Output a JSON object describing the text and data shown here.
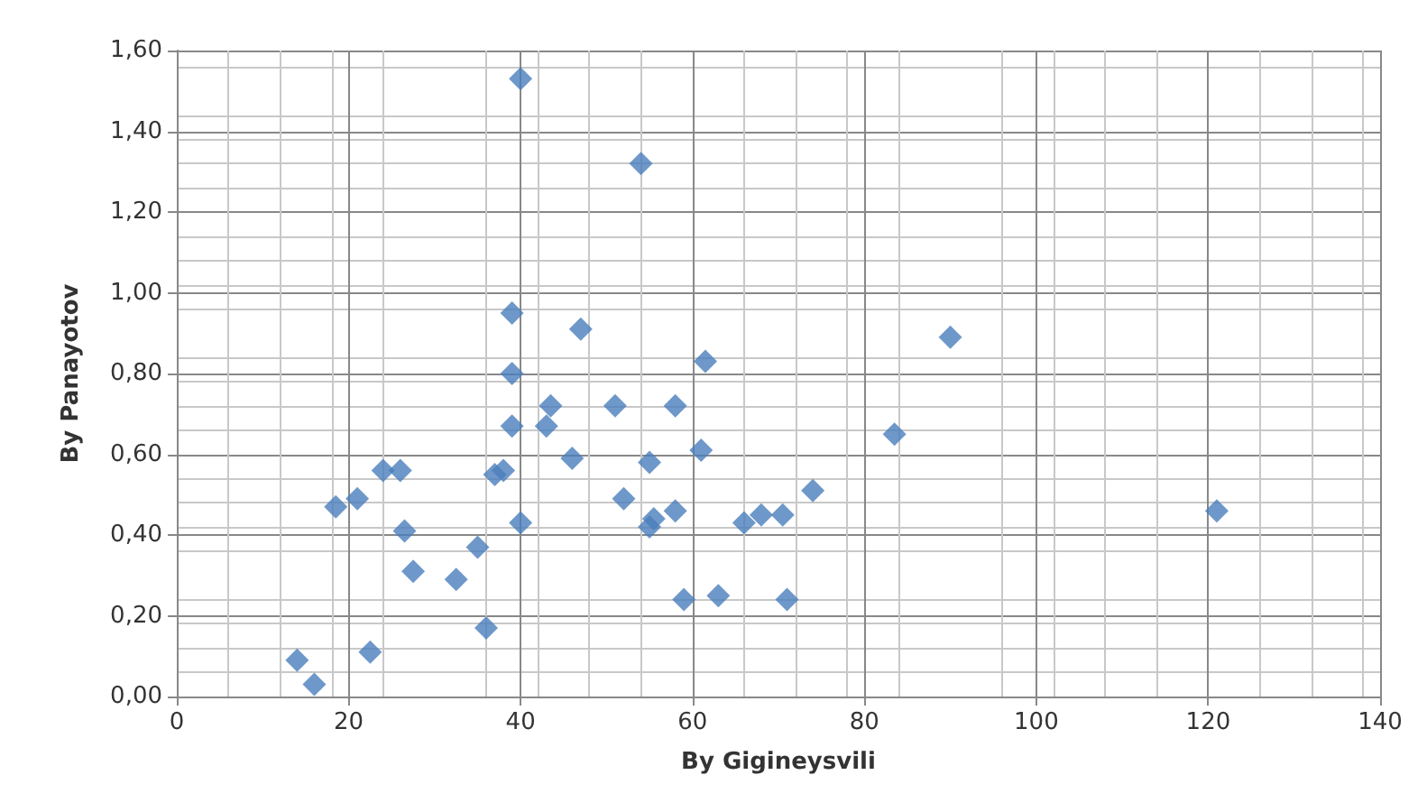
{
  "chart_data": {
    "type": "scatter",
    "xlabel": "By Gigineysvili",
    "ylabel": "By Panayotov",
    "series": [
      {
        "color": "#4a7ebb",
        "x": [
          40,
          54,
          39,
          47,
          39,
          61.5,
          90,
          39,
          43.5,
          43,
          51,
          58,
          46,
          55,
          61,
          83.5,
          37,
          38,
          24,
          26,
          18.5,
          21,
          26.5,
          40,
          52,
          55,
          55.5,
          58,
          66,
          68,
          70.5,
          74,
          121,
          35,
          27.5,
          32.5,
          36,
          59,
          63,
          71,
          14,
          16,
          22.5
        ],
        "values": [
          1.53,
          1.32,
          0.95,
          0.91,
          0.8,
          0.83,
          0.89,
          0.67,
          0.72,
          0.67,
          0.72,
          0.72,
          0.59,
          0.58,
          0.61,
          0.65,
          0.55,
          0.56,
          0.56,
          0.56,
          0.47,
          0.49,
          0.41,
          0.43,
          0.49,
          0.42,
          0.44,
          0.46,
          0.43,
          0.45,
          0.45,
          0.51,
          0.46,
          0.37,
          0.31,
          0.29,
          0.17,
          0.24,
          0.25,
          0.24,
          0.09,
          0.03,
          0.11
        ]
      }
    ],
    "xlim": [
      0,
      140
    ],
    "xticks": [
      0,
      20,
      40,
      60,
      80,
      100,
      120,
      140
    ],
    "ylim": [
      0,
      1.6
    ],
    "yticks": [
      {
        "value": 0,
        "label": "0,00"
      },
      {
        "value": 0.2,
        "label": "0,20"
      },
      {
        "value": 0.4,
        "label": "0,40"
      },
      {
        "value": 0.6,
        "label": "0,60"
      },
      {
        "value": 0.8,
        "label": "0,80"
      },
      {
        "value": 1.0,
        "label": "1,00"
      },
      {
        "value": 1.2,
        "label": "1,20"
      },
      {
        "value": 1.4,
        "label": "1,40"
      },
      {
        "value": 1.6,
        "label": "1,60"
      }
    ],
    "grid": true,
    "marker": "diamond"
  }
}
